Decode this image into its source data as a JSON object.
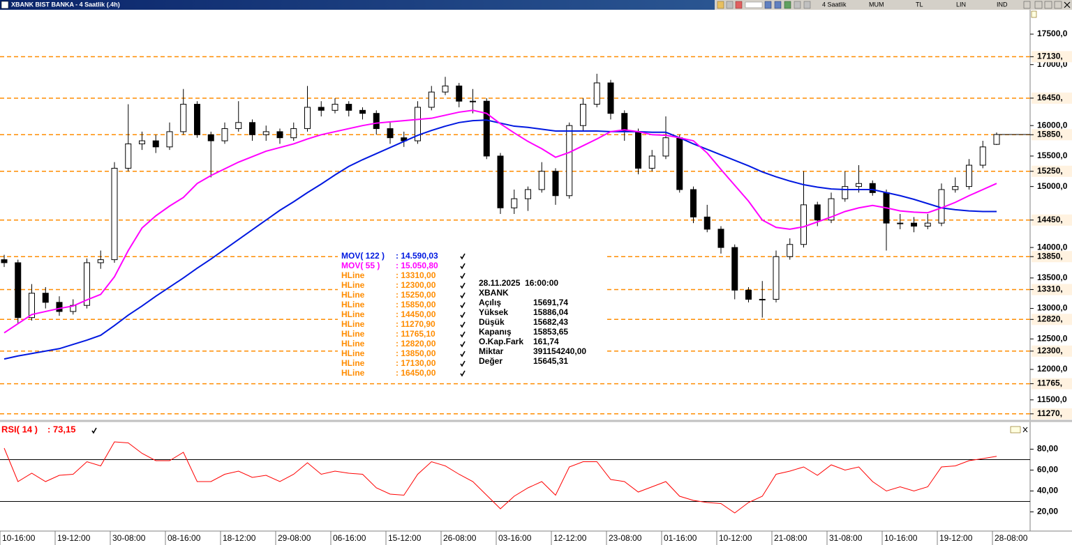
{
  "window": {
    "title": "XBANK BIST BANKA - 4 Saatlik (.4h)",
    "toolbar": [
      "4 Saatlik",
      "MUM",
      "TL",
      "LIN",
      "IND"
    ]
  },
  "chart_data": [
    {
      "type": "candlestick",
      "symbol": "XBANK",
      "categories": [
        "10-16:00",
        null,
        null,
        null,
        "19-12:00",
        null,
        null,
        null,
        "30-08:00",
        null,
        null,
        null,
        "08-16:00",
        null,
        null,
        null,
        "18-12:00",
        null,
        null,
        null,
        "29-08:00",
        null,
        null,
        null,
        "06-16:00",
        null,
        null,
        null,
        "15-12:00",
        null,
        null,
        null,
        "26-08:00",
        null,
        null,
        null,
        "03-16:00",
        null,
        null,
        null,
        "12-12:00",
        null,
        null,
        null,
        "23-08:00",
        null,
        null,
        null,
        "01-16:00",
        null,
        null,
        null,
        "10-12:00",
        null,
        null,
        null,
        "21-08:00",
        null,
        null,
        null,
        "31-08:00",
        null,
        null,
        null,
        "10-16:00",
        null,
        null,
        null,
        "19-12:00",
        null,
        null,
        null,
        "28-08:00"
      ],
      "open": [
        13800,
        13750,
        12850,
        13250,
        13100,
        12950,
        13050,
        13750,
        13800,
        15300,
        15700,
        15750,
        15650,
        15900,
        16350,
        15850,
        15750,
        15950,
        16050,
        15850,
        15900,
        15800,
        15950,
        16300,
        16250,
        16350,
        16250,
        16200,
        15950,
        15800,
        15750,
        16300,
        16550,
        16650,
        16400,
        16400,
        15500,
        14650,
        14800,
        14950,
        15250,
        14850,
        16000,
        16350,
        16700,
        16200,
        15900,
        15300,
        15500,
        15800,
        14950,
        14500,
        14300,
        14000,
        13300,
        13150,
        13150,
        13850,
        14050,
        14700,
        14450,
        14800,
        15000,
        15050,
        14900,
        14400,
        14400,
        14350,
        14400,
        14950,
        15000,
        15350,
        15691.74
      ],
      "high": [
        13880,
        13800,
        13400,
        13350,
        13200,
        13150,
        13820,
        13950,
        15400,
        16350,
        15900,
        15850,
        16050,
        16600,
        16400,
        15900,
        16050,
        16400,
        16100,
        16000,
        15950,
        16050,
        16650,
        16400,
        16450,
        16400,
        16300,
        16250,
        16050,
        15900,
        16400,
        16650,
        16800,
        16700,
        16600,
        16450,
        15550,
        14950,
        15000,
        15400,
        15300,
        16050,
        16450,
        16850,
        16750,
        16250,
        15950,
        15600,
        16150,
        15850,
        15000,
        14700,
        14350,
        14050,
        13350,
        13450,
        13950,
        14150,
        15250,
        14750,
        14900,
        15250,
        15350,
        15100,
        14950,
        14550,
        14500,
        14550,
        15050,
        15150,
        15450,
        15750,
        15886.04
      ],
      "low": [
        13680,
        12750,
        12800,
        13000,
        12880,
        12900,
        13000,
        13650,
        13750,
        15250,
        15600,
        15550,
        15600,
        15850,
        15800,
        15150,
        15700,
        15900,
        15750,
        15750,
        15700,
        15750,
        15900,
        16150,
        16200,
        16150,
        16100,
        15850,
        15700,
        15650,
        15700,
        16250,
        16500,
        16300,
        16200,
        15450,
        14550,
        14550,
        14600,
        14900,
        14700,
        14800,
        15900,
        16300,
        16100,
        15750,
        15200,
        15250,
        15450,
        14900,
        14400,
        14250,
        13900,
        13150,
        13100,
        12850,
        13100,
        13800,
        14000,
        14350,
        14400,
        14750,
        14900,
        14850,
        13950,
        14300,
        14250,
        14300,
        14350,
        14900,
        14950,
        15300,
        15682.43
      ],
      "close": [
        13750,
        12850,
        13250,
        13100,
        12950,
        13050,
        13750,
        13800,
        15300,
        15700,
        15750,
        15650,
        15900,
        16350,
        15850,
        15750,
        15950,
        16050,
        15850,
        15900,
        15800,
        15950,
        16300,
        16250,
        16350,
        16250,
        16200,
        15950,
        15800,
        15750,
        16300,
        16550,
        16650,
        16400,
        16400,
        15500,
        14650,
        14800,
        14950,
        15250,
        14850,
        16000,
        16350,
        16700,
        16200,
        15900,
        15300,
        15500,
        15800,
        14950,
        14500,
        14300,
        14000,
        13300,
        13150,
        13150,
        13850,
        14050,
        14700,
        14450,
        14800,
        15000,
        15050,
        14900,
        14400,
        14400,
        14350,
        14400,
        14950,
        15000,
        15350,
        15650,
        15853.65
      ],
      "up_color": "#ffffff",
      "down_color": "#000000",
      "ylim": [
        11200,
        17900
      ],
      "yticks": [
        {
          "value": 17500,
          "label": "17500,0"
        },
        {
          "value": 17000,
          "label": "17000,0"
        },
        {
          "value": 16000,
          "label": "16000,0"
        },
        {
          "value": 15500,
          "label": "15500,0"
        },
        {
          "value": 15000,
          "label": "15000,0"
        },
        {
          "value": 14000,
          "label": "14000,0"
        },
        {
          "value": 13500,
          "label": "13500,0"
        },
        {
          "value": 13000,
          "label": "13000,0"
        },
        {
          "value": 12500,
          "label": "12500,0"
        },
        {
          "value": 12000,
          "label": "12000,0"
        },
        {
          "value": 11500,
          "label": "11500,0"
        }
      ],
      "moving_averages": [
        {
          "name": "MOV( 122 )",
          "value_label": ": 14.590,03",
          "color": "#0018e0",
          "values": [
            12170,
            12220,
            12260,
            12300,
            12340,
            12410,
            12480,
            12560,
            12720,
            12890,
            13040,
            13200,
            13350,
            13500,
            13660,
            13810,
            13970,
            14130,
            14290,
            14450,
            14610,
            14750,
            14900,
            15040,
            15190,
            15330,
            15440,
            15540,
            15640,
            15740,
            15840,
            15920,
            15990,
            16050,
            16080,
            16090,
            16040,
            15990,
            15970,
            15940,
            15910,
            15910,
            15910,
            15910,
            15900,
            15900,
            15900,
            15890,
            15890,
            15800,
            15700,
            15610,
            15520,
            15430,
            15340,
            15240,
            15160,
            15090,
            15030,
            14990,
            14960,
            14950,
            14950,
            14950,
            14900,
            14850,
            14790,
            14720,
            14650,
            14620,
            14600,
            14590,
            14590.03
          ]
        },
        {
          "name": "MOV( 55 )",
          "value_label": ": 15.050,80",
          "color": "#ff00ff",
          "values": [
            12600,
            12750,
            12900,
            12950,
            13000,
            13040,
            13140,
            13230,
            13520,
            13950,
            14320,
            14520,
            14680,
            14820,
            15050,
            15180,
            15290,
            15400,
            15490,
            15580,
            15640,
            15700,
            15780,
            15850,
            15900,
            15950,
            16000,
            16040,
            16060,
            16080,
            16100,
            16120,
            16170,
            16220,
            16250,
            16200,
            16030,
            15880,
            15740,
            15620,
            15480,
            15560,
            15670,
            15780,
            15900,
            15930,
            15900,
            15850,
            15840,
            15800,
            15750,
            15550,
            15280,
            15020,
            14760,
            14450,
            14330,
            14300,
            14340,
            14420,
            14500,
            14590,
            14650,
            14690,
            14650,
            14600,
            14580,
            14570,
            14650,
            14740,
            14850,
            14950,
            15050.8
          ]
        }
      ],
      "hline_color": "#ff8c00",
      "hlines": [
        {
          "name": "HLine",
          "value": 13310,
          "value_label": ": 13310,00",
          "axis_label": "13310,"
        },
        {
          "name": "HLine",
          "value": 12300,
          "value_label": ": 12300,00",
          "axis_label": "12300,"
        },
        {
          "name": "HLine",
          "value": 15250,
          "value_label": ": 15250,00",
          "axis_label": "15250,"
        },
        {
          "name": "HLine",
          "value": 15850,
          "value_label": ": 15850,00",
          "axis_label": "15850,"
        },
        {
          "name": "HLine",
          "value": 14450,
          "value_label": ": 14450,00",
          "axis_label": "14450,"
        },
        {
          "name": "HLine",
          "value": 11270.9,
          "value_label": ": 11270,90",
          "axis_label": "11270,"
        },
        {
          "name": "HLine",
          "value": 11765.1,
          "value_label": ": 11765,10",
          "axis_label": "11765,"
        },
        {
          "name": "HLine",
          "value": 12820,
          "value_label": ": 12820,00",
          "axis_label": "12820,"
        },
        {
          "name": "HLine",
          "value": 13850,
          "value_label": ": 13850,00",
          "axis_label": "13850,"
        },
        {
          "name": "HLine",
          "value": 17130,
          "value_label": ": 17130,00",
          "axis_label": "17130,"
        },
        {
          "name": "HLine",
          "value": 16450,
          "value_label": ": 16450,00",
          "axis_label": "16450,"
        }
      ],
      "info": {
        "datetime": "28.11.2025  16:00:00",
        "symbol": "XBANK",
        "rows": [
          {
            "label": "Açılış",
            "value": "15691,74"
          },
          {
            "label": "Yüksek",
            "value": "15886,04"
          },
          {
            "label": "Düşük",
            "value": "15682,43"
          },
          {
            "label": "Kapanış",
            "value": "15853,65"
          },
          {
            "label": "O.Kap.Fark",
            "value": "161,74"
          },
          {
            "label": "Miktar",
            "value": "391154240,00"
          },
          {
            "label": "Değer",
            "value": "15645,31"
          }
        ]
      }
    },
    {
      "type": "line",
      "name": "RSI( 14 )",
      "value_label": ": 73,15",
      "color": "#ff0000",
      "values": [
        81,
        49,
        57,
        49,
        55,
        56,
        68,
        64,
        87,
        86,
        76,
        69,
        69,
        77,
        49,
        49,
        56,
        59,
        53,
        55,
        49,
        56,
        67,
        56,
        59,
        57,
        56,
        43,
        37,
        36,
        56,
        68,
        64,
        56,
        49,
        36,
        23,
        35,
        43,
        49,
        36,
        63,
        68,
        68,
        51,
        49,
        39,
        44,
        49,
        35,
        31,
        29,
        28,
        19,
        29,
        35,
        56,
        59,
        63,
        55,
        65,
        60,
        63,
        49,
        40,
        44,
        40,
        44,
        63,
        64,
        69,
        71,
        73.15
      ],
      "ylim": [
        3,
        103
      ],
      "yticks": [
        {
          "value": 80,
          "label": "80,00"
        },
        {
          "value": 60,
          "label": "60,00"
        },
        {
          "value": 40,
          "label": "40,00"
        },
        {
          "value": 20,
          "label": "20,00"
        }
      ],
      "levels": [
        70,
        30
      ]
    }
  ]
}
